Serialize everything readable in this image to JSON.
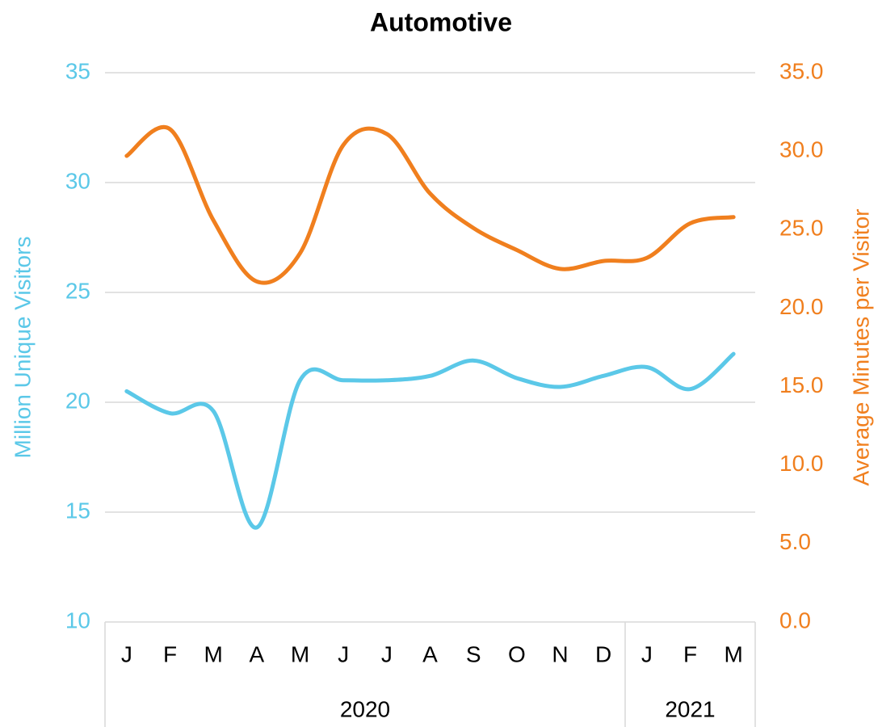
{
  "chart_data": {
    "type": "line",
    "title": "Automotive",
    "categories": [
      "J",
      "F",
      "M",
      "A",
      "M",
      "J",
      "J",
      "A",
      "S",
      "O",
      "N",
      "D",
      "J",
      "F",
      "M"
    ],
    "groups": [
      {
        "label": "2020",
        "count": 12
      },
      {
        "label": "2021",
        "count": 3
      }
    ],
    "y_label": "Million Unique Visitors",
    "y2_label": "Average Minutes per Visitor",
    "ylim": [
      10,
      35
    ],
    "yticks": [
      10,
      15,
      20,
      25,
      30,
      35
    ],
    "y2lim": [
      0,
      35
    ],
    "y2ticks": [
      {
        "value": 0,
        "label": "0.0"
      },
      {
        "value": 5,
        "label": "5.0"
      },
      {
        "value": 10,
        "label": "10.0"
      },
      {
        "value": 15,
        "label": "15.0"
      },
      {
        "value": 20,
        "label": "20.0"
      },
      {
        "value": 25,
        "label": "25.0"
      },
      {
        "value": 30,
        "label": "30.0"
      },
      {
        "value": 35,
        "label": "35.0"
      }
    ],
    "grid": true,
    "smooth": true,
    "series": [
      {
        "name": "Million Unique Visitors",
        "color": "#5bc8e8",
        "values": [
          20.5,
          19.5,
          19.6,
          14.3,
          21.0,
          21.0,
          21.0,
          21.2,
          21.9,
          21.1,
          20.7,
          21.2,
          21.6,
          20.6,
          22.2
        ]
      },
      {
        "name": "Average Minutes per Visitor",
        "color": "#f07f1e",
        "axis": "y2",
        "values": [
          29.7,
          31.4,
          25.6,
          21.7,
          23.5,
          30.4,
          31.1,
          27.3,
          25.1,
          23.7,
          22.5,
          23.0,
          23.2,
          25.4,
          25.8
        ]
      }
    ]
  }
}
